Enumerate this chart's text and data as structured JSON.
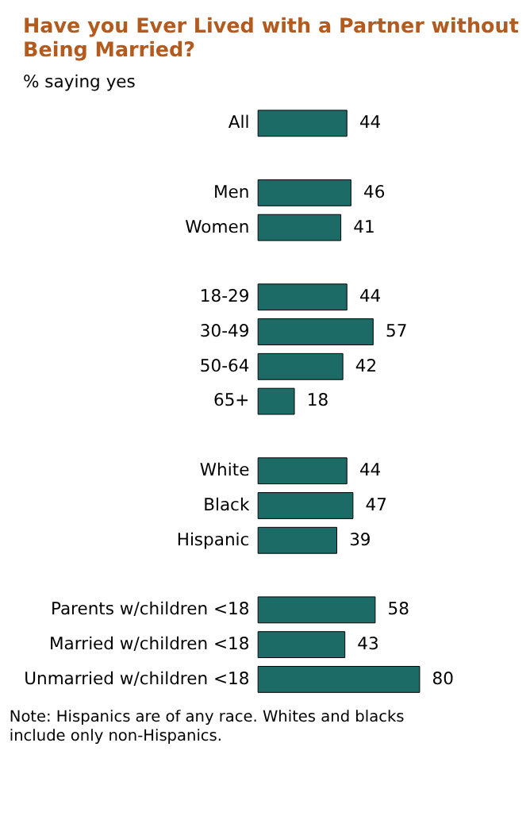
{
  "chart_data": {
    "type": "bar",
    "orientation": "horizontal",
    "title": "Have you Ever Lived with a Partner without Being Married?",
    "subtitle": "% saying yes",
    "categories": [
      "All",
      null,
      "Men",
      "Women",
      null,
      "18-29",
      "30-49",
      "50-64",
      "65+",
      null,
      "White",
      "Black",
      "Hispanic",
      null,
      "Parents w/children <18",
      "Married w/children <18",
      "Unmarried w/children <18"
    ],
    "values": [
      44,
      null,
      46,
      41,
      null,
      44,
      57,
      42,
      18,
      null,
      44,
      47,
      39,
      null,
      58,
      43,
      80
    ],
    "color": "#1d6b66",
    "data_labels": true,
    "annotations": [
      "Note: Hispanics are of any race. Whites and blacks include only non-Hispanics."
    ]
  }
}
